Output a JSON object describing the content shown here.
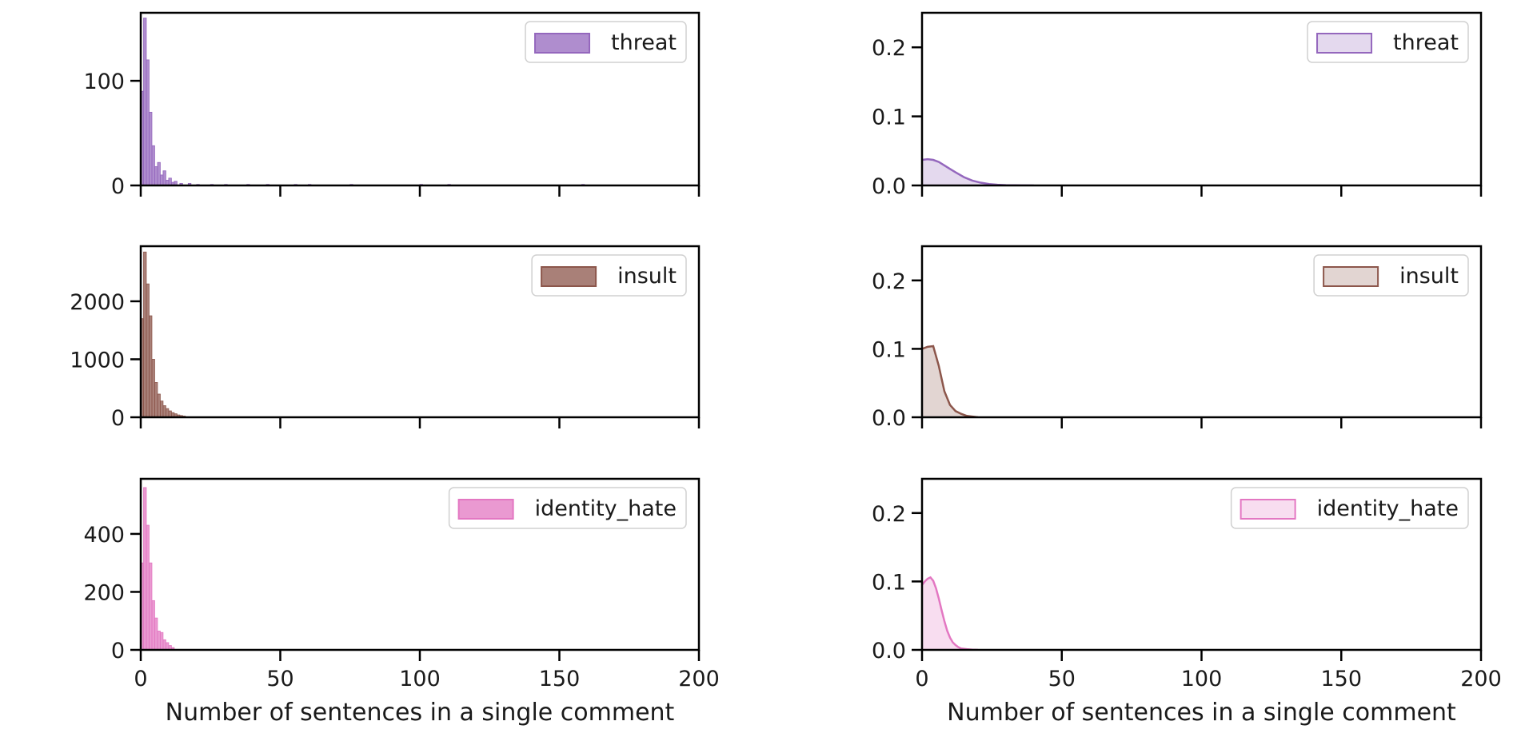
{
  "chart_data": [
    {
      "type": "histogram",
      "legend": "threat",
      "legend_location": "upper-right",
      "color": "#9467bd",
      "xlim": [
        0,
        200
      ],
      "ylim": [
        0,
        165
      ],
      "x_ticks": [
        0,
        50,
        100,
        150,
        200
      ],
      "x_tick_labels_shown": false,
      "y_ticks": [
        0,
        100
      ],
      "xlabel": "",
      "bin_width": 1,
      "x": [
        0,
        1,
        2,
        3,
        4,
        5,
        6,
        7,
        8,
        9,
        10,
        11,
        12,
        14,
        17,
        20,
        25,
        30,
        38,
        45,
        55,
        60,
        75,
        100,
        110,
        158
      ],
      "values": [
        90,
        160,
        120,
        70,
        38,
        18,
        22,
        10,
        14,
        5,
        7,
        3,
        4,
        2,
        2,
        1,
        1,
        1,
        1,
        1,
        1,
        1,
        1,
        1,
        1,
        1
      ]
    },
    {
      "type": "histogram",
      "legend": "insult",
      "legend_location": "upper-right",
      "color": "#8c564b",
      "xlim": [
        0,
        200
      ],
      "ylim": [
        0,
        2950
      ],
      "x_ticks": [
        0,
        50,
        100,
        150,
        200
      ],
      "x_tick_labels_shown": false,
      "y_ticks": [
        0,
        1000,
        2000
      ],
      "xlabel": "",
      "bin_width": 1,
      "x": [
        0,
        1,
        2,
        3,
        4,
        5,
        6,
        7,
        8,
        9,
        10,
        11,
        12,
        13,
        14,
        15
      ],
      "values": [
        1700,
        2850,
        2300,
        1750,
        1000,
        600,
        400,
        280,
        200,
        150,
        110,
        80,
        60,
        40,
        30,
        20
      ]
    },
    {
      "type": "histogram",
      "legend": "identity_hate",
      "legend_location": "upper-right",
      "color": "#e377c2",
      "xlim": [
        0,
        200
      ],
      "ylim": [
        0,
        590
      ],
      "x_ticks": [
        0,
        50,
        100,
        150,
        200
      ],
      "x_tick_labels": [
        "0",
        "50",
        "100",
        "150",
        "200"
      ],
      "y_ticks": [
        0,
        200,
        400
      ],
      "xlabel": "Number of sentences in a single comment",
      "bin_width": 1,
      "x": [
        0,
        1,
        2,
        3,
        4,
        5,
        6,
        7,
        8,
        9,
        10,
        11
      ],
      "values": [
        300,
        560,
        430,
        300,
        170,
        110,
        65,
        60,
        35,
        25,
        15,
        8
      ]
    },
    {
      "type": "area",
      "legend": "threat",
      "legend_location": "upper-right",
      "color": "#9467bd",
      "xlim": [
        0,
        200
      ],
      "ylim": [
        0,
        0.25
      ],
      "x_ticks": [
        0,
        50,
        100,
        150,
        200
      ],
      "x_tick_labels_shown": false,
      "y_ticks": [
        0.0,
        0.1,
        0.2
      ],
      "y_tick_labels": [
        "0.0",
        "0.1",
        "0.2"
      ],
      "xlabel": "",
      "x": [
        0,
        2,
        4,
        6,
        8,
        10,
        12,
        15,
        18,
        21,
        24,
        27,
        30,
        35,
        40
      ],
      "values": [
        0.037,
        0.038,
        0.037,
        0.034,
        0.029,
        0.024,
        0.019,
        0.012,
        0.007,
        0.004,
        0.002,
        0.001,
        0.0005,
        0.0002,
        0
      ]
    },
    {
      "type": "area",
      "legend": "insult",
      "legend_location": "upper-right",
      "color": "#8c564b",
      "xlim": [
        0,
        200
      ],
      "ylim": [
        0,
        0.25
      ],
      "x_ticks": [
        0,
        50,
        100,
        150,
        200
      ],
      "x_tick_labels_shown": false,
      "y_ticks": [
        0.0,
        0.1,
        0.2
      ],
      "y_tick_labels": [
        "0.0",
        "0.1",
        "0.2"
      ],
      "xlabel": "",
      "x": [
        0,
        2,
        4,
        6,
        8,
        10,
        12,
        14,
        16,
        18,
        20
      ],
      "values": [
        0.1,
        0.103,
        0.104,
        0.075,
        0.038,
        0.018,
        0.009,
        0.005,
        0.002,
        0.001,
        0
      ]
    },
    {
      "type": "area",
      "legend": "identity_hate",
      "legend_location": "upper-right",
      "color": "#e377c2",
      "xlim": [
        0,
        200
      ],
      "ylim": [
        0,
        0.25
      ],
      "x_ticks": [
        0,
        50,
        100,
        150,
        200
      ],
      "x_tick_labels": [
        "0",
        "50",
        "100",
        "150",
        "200"
      ],
      "y_ticks": [
        0.0,
        0.1,
        0.2
      ],
      "y_tick_labels": [
        "0.0",
        "0.1",
        "0.2"
      ],
      "xlabel": "Number of sentences in a single comment",
      "x": [
        0,
        1,
        2,
        3,
        4,
        5,
        6,
        7,
        8,
        9,
        10,
        11,
        12,
        13,
        14,
        16,
        18,
        20
      ],
      "values": [
        0.095,
        0.1,
        0.104,
        0.106,
        0.101,
        0.09,
        0.075,
        0.058,
        0.042,
        0.028,
        0.018,
        0.011,
        0.007,
        0.004,
        0.002,
        0.001,
        0.0003,
        0
      ]
    }
  ]
}
